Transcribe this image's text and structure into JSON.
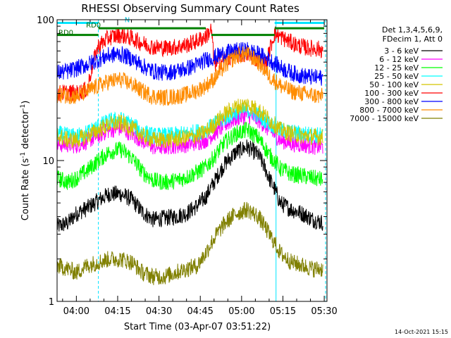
{
  "chart_data": {
    "type": "line",
    "title": "RHESSI Observing Summary Count Rates",
    "xlabel": "Start Time (03-Apr-07 03:51:22)",
    "ylabel_prefix": "Count Rate (s",
    "ylabel_sup": "-1",
    "ylabel_mid": " detector",
    "ylabel_sup2": "-1",
    "ylabel_suffix": ")",
    "yscale": "log",
    "ylim": [
      1,
      100
    ],
    "y_ticks": [
      {
        "value": 1,
        "label": "1"
      },
      {
        "value": 10,
        "label": "10"
      },
      {
        "value": 100,
        "label": "100"
      }
    ],
    "xlim_minutes": [
      -7,
      91
    ],
    "x_ticks": [
      {
        "value": 0,
        "label": "04:00"
      },
      {
        "value": 15,
        "label": "04:15"
      },
      {
        "value": 30,
        "label": "04:30"
      },
      {
        "value": 45,
        "label": "04:45"
      },
      {
        "value": 60,
        "label": "05:00"
      },
      {
        "value": 75,
        "label": "05:15"
      },
      {
        "value": 90,
        "label": "05:30"
      }
    ],
    "legend": {
      "placement": "right",
      "header": [
        "Det 1,3,4,5,6,9,",
        "FDecim 1, Att 0"
      ]
    },
    "series": [
      {
        "name": "3 - 6 keV",
        "color": "#000000",
        "points": [
          [
            -7,
            3.4
          ],
          [
            -3,
            3.6
          ],
          [
            0,
            4.2
          ],
          [
            4,
            4.6
          ],
          [
            8,
            5.2
          ],
          [
            12,
            5.8
          ],
          [
            16,
            5.8
          ],
          [
            20,
            5.3
          ],
          [
            24,
            4.3
          ],
          [
            28,
            3.8
          ],
          [
            32,
            3.9
          ],
          [
            36,
            4.0
          ],
          [
            40,
            4.2
          ],
          [
            44,
            4.8
          ],
          [
            47,
            5.5
          ],
          [
            50,
            7.0
          ],
          [
            54,
            9.5
          ],
          [
            58,
            11.5
          ],
          [
            62,
            12.5
          ],
          [
            66,
            11.0
          ],
          [
            70,
            7.5
          ],
          [
            74,
            5.0
          ],
          [
            78,
            4.5
          ],
          [
            82,
            4.2
          ],
          [
            86,
            3.8
          ],
          [
            90,
            3.6
          ]
        ]
      },
      {
        "name": "6 - 12 keV",
        "color": "#ff00ff",
        "points": [
          [
            -7,
            13.0
          ],
          [
            -3,
            13.0
          ],
          [
            0,
            12.8
          ],
          [
            4,
            13.8
          ],
          [
            8,
            15.0
          ],
          [
            12,
            16.5
          ],
          [
            16,
            17.0
          ],
          [
            20,
            15.5
          ],
          [
            24,
            13.8
          ],
          [
            28,
            12.5
          ],
          [
            32,
            12.5
          ],
          [
            36,
            12.8
          ],
          [
            40,
            13.0
          ],
          [
            44,
            13.5
          ],
          [
            47,
            14.0
          ],
          [
            50,
            15.5
          ],
          [
            54,
            18.0
          ],
          [
            58,
            20.0
          ],
          [
            62,
            21.0
          ],
          [
            66,
            19.5
          ],
          [
            70,
            16.5
          ],
          [
            74,
            14.0
          ],
          [
            78,
            13.2
          ],
          [
            82,
            13.0
          ],
          [
            86,
            12.6
          ],
          [
            90,
            12.5
          ]
        ]
      },
      {
        "name": "12 - 25 keV",
        "color": "#00ff00",
        "points": [
          [
            -7,
            7.5
          ],
          [
            -3,
            7.0
          ],
          [
            0,
            7.5
          ],
          [
            4,
            8.5
          ],
          [
            8,
            10.0
          ],
          [
            12,
            11.5
          ],
          [
            16,
            12.0
          ],
          [
            20,
            10.5
          ],
          [
            24,
            8.3
          ],
          [
            28,
            7.2
          ],
          [
            32,
            7.0
          ],
          [
            36,
            7.2
          ],
          [
            40,
            7.6
          ],
          [
            44,
            8.3
          ],
          [
            47,
            9.0
          ],
          [
            50,
            10.5
          ],
          [
            54,
            13.5
          ],
          [
            58,
            15.5
          ],
          [
            62,
            16.5
          ],
          [
            66,
            14.5
          ],
          [
            70,
            11.0
          ],
          [
            74,
            8.8
          ],
          [
            78,
            8.0
          ],
          [
            82,
            7.8
          ],
          [
            86,
            7.5
          ],
          [
            90,
            7.3
          ]
        ]
      },
      {
        "name": "25 - 50 keV",
        "color": "#00ffff",
        "points": [
          [
            -7,
            15.5
          ],
          [
            -3,
            15.0
          ],
          [
            0,
            14.8
          ],
          [
            4,
            15.8
          ],
          [
            8,
            17.5
          ],
          [
            12,
            19.0
          ],
          [
            16,
            19.5
          ],
          [
            20,
            18.0
          ],
          [
            24,
            16.0
          ],
          [
            28,
            15.0
          ],
          [
            32,
            15.0
          ],
          [
            36,
            15.2
          ],
          [
            40,
            15.5
          ],
          [
            44,
            16.0
          ],
          [
            47,
            16.5
          ],
          [
            50,
            18.0
          ],
          [
            54,
            20.0
          ],
          [
            58,
            22.0
          ],
          [
            62,
            23.0
          ],
          [
            66,
            21.0
          ],
          [
            70,
            18.5
          ],
          [
            74,
            16.5
          ],
          [
            78,
            15.8
          ],
          [
            82,
            15.5
          ],
          [
            86,
            15.2
          ],
          [
            90,
            15.0
          ]
        ]
      },
      {
        "name": "50 - 100 keV",
        "color": "#d4c400",
        "points": [
          [
            -7,
            15.0
          ],
          [
            -3,
            14.0
          ],
          [
            0,
            14.0
          ],
          [
            4,
            15.0
          ],
          [
            8,
            16.5
          ],
          [
            12,
            18.0
          ],
          [
            16,
            18.5
          ],
          [
            20,
            17.0
          ],
          [
            24,
            15.0
          ],
          [
            28,
            14.0
          ],
          [
            32,
            14.0
          ],
          [
            36,
            14.2
          ],
          [
            40,
            14.5
          ],
          [
            44,
            15.0
          ],
          [
            47,
            16.0
          ],
          [
            50,
            18.0
          ],
          [
            54,
            21.5
          ],
          [
            58,
            24.0
          ],
          [
            62,
            25.0
          ],
          [
            66,
            23.0
          ],
          [
            70,
            19.5
          ],
          [
            74,
            16.5
          ],
          [
            78,
            15.5
          ],
          [
            82,
            15.0
          ],
          [
            86,
            14.8
          ],
          [
            90,
            14.6
          ]
        ]
      },
      {
        "name": "100 - 300 keV",
        "color": "#ff0000",
        "points": [
          [
            -7,
            30.0
          ],
          [
            -3,
            30.5
          ],
          [
            0,
            30.0
          ],
          [
            4,
            32.0
          ],
          [
            8,
            65.0
          ],
          [
            12,
            75.0
          ],
          [
            16,
            78.0
          ],
          [
            20,
            74.0
          ],
          [
            24,
            68.0
          ],
          [
            28,
            64.0
          ],
          [
            32,
            63.0
          ],
          [
            36,
            64.0
          ],
          [
            40,
            66.0
          ],
          [
            44,
            71.0
          ],
          [
            47,
            76.0
          ],
          [
            49,
            85.0
          ],
          [
            50,
            48.0
          ],
          [
            54,
            52.0
          ],
          [
            58,
            56.0
          ],
          [
            62,
            57.0
          ],
          [
            66,
            52.0
          ],
          [
            69,
            48.0
          ],
          [
            72,
            80.0
          ],
          [
            76,
            72.0
          ],
          [
            80,
            66.0
          ],
          [
            84,
            63.0
          ],
          [
            88,
            62.0
          ],
          [
            90,
            61.0
          ]
        ]
      },
      {
        "name": "300 - 800 keV",
        "color": "#0000ff",
        "points": [
          [
            -7,
            42.0
          ],
          [
            -3,
            43.0
          ],
          [
            0,
            45.0
          ],
          [
            4,
            48.0
          ],
          [
            8,
            52.0
          ],
          [
            12,
            56.0
          ],
          [
            16,
            57.0
          ],
          [
            20,
            53.0
          ],
          [
            24,
            47.0
          ],
          [
            28,
            43.0
          ],
          [
            32,
            42.0
          ],
          [
            36,
            43.0
          ],
          [
            40,
            45.0
          ],
          [
            44,
            48.0
          ],
          [
            47,
            52.0
          ],
          [
            50,
            54.0
          ],
          [
            54,
            58.0
          ],
          [
            58,
            60.0
          ],
          [
            62,
            61.0
          ],
          [
            66,
            57.0
          ],
          [
            70,
            52.0
          ],
          [
            74,
            46.0
          ],
          [
            78,
            42.0
          ],
          [
            82,
            40.0
          ],
          [
            86,
            39.0
          ],
          [
            90,
            38.5
          ]
        ]
      },
      {
        "name": "800 - 7000 keV",
        "color": "#ff8c00",
        "points": [
          [
            -7,
            29.5
          ],
          [
            -3,
            29.0
          ],
          [
            0,
            28.5
          ],
          [
            4,
            31.0
          ],
          [
            8,
            34.0
          ],
          [
            12,
            36.5
          ],
          [
            16,
            37.5
          ],
          [
            20,
            35.0
          ],
          [
            24,
            31.0
          ],
          [
            28,
            28.5
          ],
          [
            32,
            28.0
          ],
          [
            36,
            28.5
          ],
          [
            40,
            29.5
          ],
          [
            44,
            31.5
          ],
          [
            47,
            34.0
          ],
          [
            50,
            38.0
          ],
          [
            54,
            47.0
          ],
          [
            58,
            55.0
          ],
          [
            62,
            57.0
          ],
          [
            66,
            50.0
          ],
          [
            70,
            40.0
          ],
          [
            74,
            34.0
          ],
          [
            78,
            31.0
          ],
          [
            82,
            30.0
          ],
          [
            86,
            29.0
          ],
          [
            90,
            28.5
          ]
        ]
      },
      {
        "name": "7000 - 15000 keV",
        "color": "#808000",
        "points": [
          [
            -7,
            1.8
          ],
          [
            -3,
            1.7
          ],
          [
            0,
            1.6
          ],
          [
            4,
            1.8
          ],
          [
            8,
            1.9
          ],
          [
            12,
            2.0
          ],
          [
            16,
            2.0
          ],
          [
            20,
            1.9
          ],
          [
            24,
            1.6
          ],
          [
            28,
            1.5
          ],
          [
            32,
            1.5
          ],
          [
            36,
            1.6
          ],
          [
            40,
            1.7
          ],
          [
            44,
            1.8
          ],
          [
            47,
            2.2
          ],
          [
            50,
            2.8
          ],
          [
            54,
            3.6
          ],
          [
            58,
            4.2
          ],
          [
            62,
            4.5
          ],
          [
            66,
            4.0
          ],
          [
            70,
            3.0
          ],
          [
            74,
            2.2
          ],
          [
            78,
            1.9
          ],
          [
            82,
            1.8
          ],
          [
            86,
            1.7
          ],
          [
            90,
            1.7
          ]
        ]
      }
    ],
    "annotations": [
      {
        "text": "RD0",
        "x_minutes": 3,
        "y": 88,
        "color": "#006400"
      },
      {
        "text": "RD0",
        "x_minutes": -7,
        "y": 78,
        "color": "#006400"
      },
      {
        "text": "N",
        "x_minutes": 17,
        "y": 96,
        "color": "#00bcd4"
      }
    ],
    "attenuator_bars": [
      {
        "color": "#00e5ff",
        "y": 95,
        "segments": [
          [
            -7,
            8
          ],
          [
            72,
            90
          ]
        ]
      },
      {
        "color": "#008000",
        "y": 87,
        "segments": [
          [
            8,
            47
          ]
        ]
      },
      {
        "color": "#008000",
        "y": 78,
        "segments": [
          [
            -7,
            8
          ],
          [
            49,
            72
          ]
        ]
      },
      {
        "color": "#008000",
        "y": 87,
        "segments": [
          [
            72,
            90
          ]
        ]
      }
    ],
    "vertical_markers": [
      {
        "x_minutes": -7,
        "style": "solid",
        "color": "#00e5ff"
      },
      {
        "x_minutes": 8,
        "style": "dashed",
        "color": "#00e5ff"
      },
      {
        "x_minutes": 72.5,
        "style": "solid",
        "color": "#00e5ff"
      },
      {
        "x_minutes": 90.5,
        "style": "dashed",
        "color": "#00e5ff"
      }
    ],
    "timestamp": "14-Oct-2021 15:15"
  }
}
